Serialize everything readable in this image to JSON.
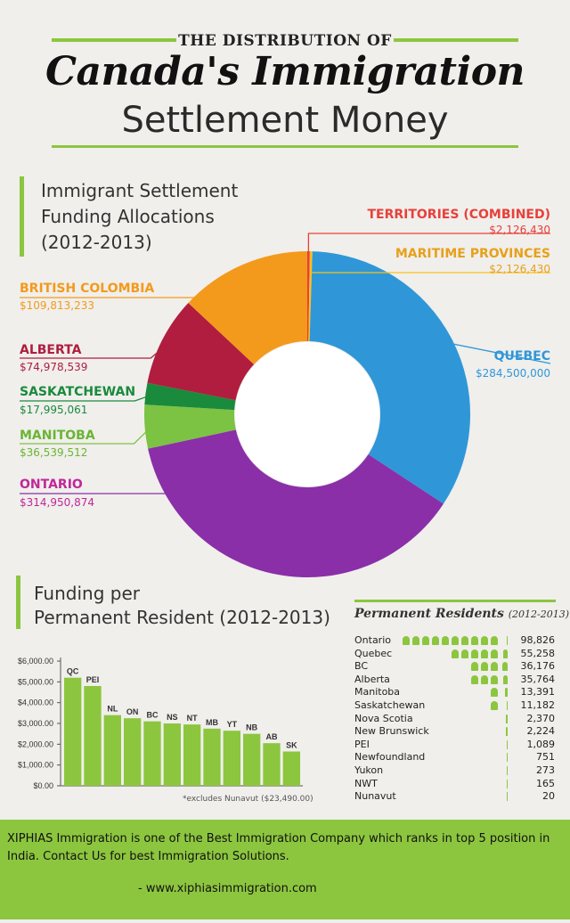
{
  "header": {
    "top": "THE DISTRIBUTION OF",
    "main": "Canada's Immigration",
    "sub": "Settlement Money"
  },
  "section1": {
    "title_l1": "Immigrant Settlement",
    "title_l2": "Funding Allocations",
    "title_l3": "(2012-2013)"
  },
  "section2": {
    "title_l1": "Funding per",
    "title_l2": "Permanent Resident (2012-2013)",
    "footnote": "*excludes Nunavut ($23,490.00)"
  },
  "permanent_residents": {
    "title": "Permanent Residents",
    "year": "(2012-2013)"
  },
  "footer": {
    "text": "XIPHIAS Immigration is one of the Best Immigration Company which ranks in top 5 position in India. Contact Us for best Immigration Solutions.",
    "url": "- www.xiphiasimmigration.com"
  },
  "colors": {
    "accent_green": "#8cc63f",
    "territories": "#e8403a",
    "maritime": "#f6c21b",
    "quebec": "#2f97d8",
    "ontario": "#8a2fa8",
    "manitoba": "#7cc243",
    "saskatchewan": "#1a8a3c",
    "alberta": "#b01d3e",
    "british_columbia": "#f39a1c"
  },
  "chart_data": [
    {
      "type": "pie",
      "title": "Immigrant Settlement Funding Allocations (2012-2013)",
      "slices": [
        {
          "name": "TERRITORIES (COMBINED)",
          "label": "$2,126,430",
          "value": 2126430
        },
        {
          "name": "MARITIME PROVINCES",
          "label": "$2,126,430",
          "value": 2126430
        },
        {
          "name": "QUEBEC",
          "label": "$284,500,000",
          "value": 284500000
        },
        {
          "name": "ONTARIO",
          "label": "$314,950,874",
          "value": 314950874
        },
        {
          "name": "MANITOBA",
          "label": "$36,539,512",
          "value": 36539512
        },
        {
          "name": "SASKATCHEWAN",
          "label": "$17,995,061",
          "value": 17995061
        },
        {
          "name": "ALBERTA",
          "label": "$74,978,539",
          "value": 74978539
        },
        {
          "name": "BRITISH COLOMBIA",
          "label": "$109,813,233",
          "value": 109813233
        }
      ]
    },
    {
      "type": "bar",
      "title": "Funding per Permanent Resident (2012-2013)",
      "categories": [
        "QC",
        "PEI",
        "NL",
        "ON",
        "BC",
        "NS",
        "NT",
        "MB",
        "YT",
        "NB",
        "AB",
        "SK"
      ],
      "values": [
        5200,
        4800,
        3400,
        3250,
        3100,
        3000,
        2950,
        2750,
        2650,
        2500,
        2050,
        1650
      ],
      "ylim": [
        0,
        6000
      ],
      "yticks": [
        "$0.00",
        "$1,000.00",
        "$2,000.00",
        "$3,000.00",
        "$4,000.00",
        "$5,000.00",
        "$6,000.00"
      ],
      "ytick_values": [
        0,
        1000,
        2000,
        3000,
        4000,
        5000,
        6000
      ]
    },
    {
      "type": "table",
      "title": "Permanent Residents (2012-2013)",
      "rows": [
        {
          "name": "Ontario",
          "value": "98,826",
          "num": 98826
        },
        {
          "name": "Quebec",
          "value": "55,258",
          "num": 55258
        },
        {
          "name": "BC",
          "value": "36,176",
          "num": 36176
        },
        {
          "name": "Alberta",
          "value": "35,764",
          "num": 35764
        },
        {
          "name": "Manitoba",
          "value": "13,391",
          "num": 13391
        },
        {
          "name": "Saskatchewan",
          "value": "11,182",
          "num": 11182
        },
        {
          "name": "Nova Scotia",
          "value": "2,370",
          "num": 2370
        },
        {
          "name": "New Brunswick",
          "value": "2,224",
          "num": 2224
        },
        {
          "name": "PEI",
          "value": "1,089",
          "num": 1089
        },
        {
          "name": "Newfoundland",
          "value": "751",
          "num": 751
        },
        {
          "name": "Yukon",
          "value": "273",
          "num": 273
        },
        {
          "name": "NWT",
          "value": "165",
          "num": 165
        },
        {
          "name": "Nunavut",
          "value": "20",
          "num": 20
        }
      ]
    }
  ]
}
